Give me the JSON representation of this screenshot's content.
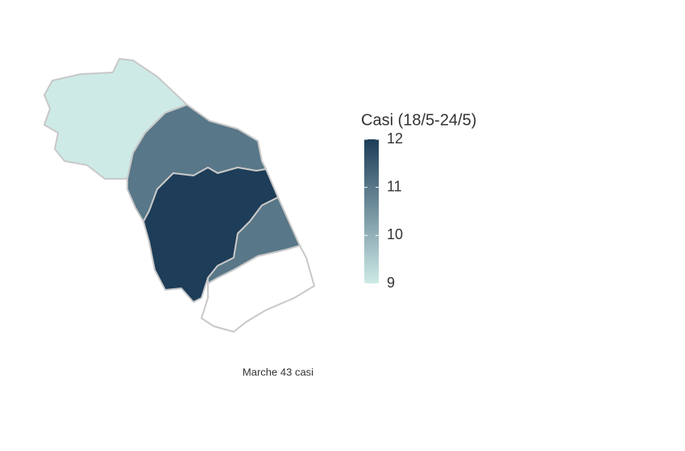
{
  "legend_title": "Casi (18/5-24/5)",
  "caption": "Marche 43 casi",
  "color_scale": {
    "lim": [
      9,
      12
    ],
    "ticks": [
      9,
      10,
      11,
      12
    ],
    "colors": [
      "#cdeae7",
      "#1d3d58"
    ]
  },
  "regions": [
    {
      "value": 9
    },
    {
      "value": 11
    },
    {
      "value": 12
    },
    {
      "value": 11
    },
    {
      "value": null
    }
  ]
}
